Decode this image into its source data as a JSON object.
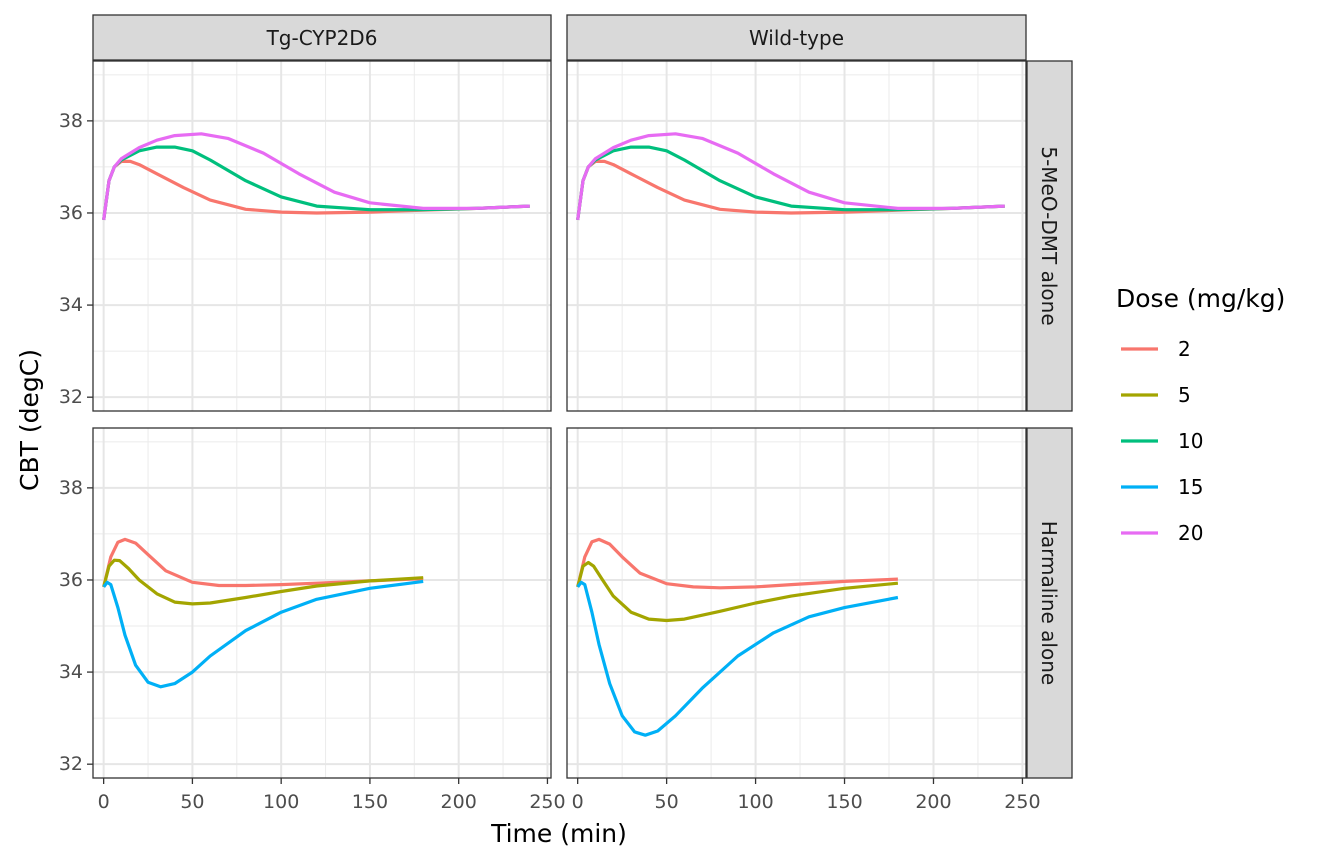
{
  "chart_data": {
    "type": "line",
    "xlabel": "Time (min)",
    "ylabel": "CBT (degC)",
    "xlim": [
      -6,
      252
    ],
    "ylim": [
      31.7,
      39.3
    ],
    "x_ticks": [
      0,
      50,
      100,
      150,
      200,
      250
    ],
    "y_ticks": [
      32,
      34,
      36,
      38
    ],
    "grid": true,
    "legend": {
      "title": "Dose (mg/kg)",
      "position": "right",
      "entries": [
        {
          "label": "2",
          "color": "#F8766D"
        },
        {
          "label": "5",
          "color": "#A3A500"
        },
        {
          "label": "10",
          "color": "#00BF7D"
        },
        {
          "label": "15",
          "color": "#00B0F6"
        },
        {
          "label": "20",
          "color": "#E76BF3"
        }
      ]
    },
    "col_facets": [
      "Tg-CYP2D6",
      "Wild-type"
    ],
    "row_facets": [
      "5-MeO-DMT alone",
      "Harmaline alone"
    ],
    "panels": [
      {
        "col": "Tg-CYP2D6",
        "row": "5-MeO-DMT alone",
        "series": [
          {
            "name": "2",
            "color": "#F8766D",
            "x": [
              0,
              3,
              6,
              10,
              15,
              20,
              30,
              45,
              60,
              80,
              100,
              120,
              150,
              180,
              210,
              240
            ],
            "y": [
              35.85,
              36.7,
              37.0,
              37.12,
              37.12,
              37.05,
              36.85,
              36.55,
              36.28,
              36.08,
              36.02,
              36.0,
              36.02,
              36.06,
              36.1,
              36.15
            ]
          },
          {
            "name": "10",
            "color": "#00BF7D",
            "x": [
              0,
              3,
              6,
              10,
              20,
              30,
              40,
              50,
              60,
              80,
              100,
              120,
              150,
              180,
              210,
              240
            ],
            "y": [
              35.85,
              36.7,
              37.0,
              37.15,
              37.35,
              37.43,
              37.43,
              37.35,
              37.15,
              36.7,
              36.35,
              36.15,
              36.07,
              36.07,
              36.1,
              36.15
            ]
          },
          {
            "name": "20",
            "color": "#E76BF3",
            "x": [
              0,
              3,
              6,
              10,
              20,
              30,
              40,
              55,
              70,
              90,
              110,
              130,
              150,
              180,
              210,
              240
            ],
            "y": [
              35.85,
              36.7,
              37.0,
              37.18,
              37.42,
              37.58,
              37.68,
              37.72,
              37.62,
              37.3,
              36.85,
              36.45,
              36.22,
              36.1,
              36.1,
              36.15
            ]
          }
        ]
      },
      {
        "col": "Wild-type",
        "row": "5-MeO-DMT alone",
        "series": [
          {
            "name": "2",
            "color": "#F8766D",
            "x": [
              0,
              3,
              6,
              10,
              15,
              20,
              30,
              45,
              60,
              80,
              100,
              120,
              150,
              180,
              210,
              240
            ],
            "y": [
              35.85,
              36.7,
              37.0,
              37.12,
              37.12,
              37.05,
              36.85,
              36.55,
              36.28,
              36.08,
              36.02,
              36.0,
              36.02,
              36.06,
              36.1,
              36.15
            ]
          },
          {
            "name": "10",
            "color": "#00BF7D",
            "x": [
              0,
              3,
              6,
              10,
              20,
              30,
              40,
              50,
              60,
              80,
              100,
              120,
              150,
              180,
              210,
              240
            ],
            "y": [
              35.85,
              36.7,
              37.0,
              37.15,
              37.35,
              37.43,
              37.43,
              37.35,
              37.15,
              36.7,
              36.35,
              36.15,
              36.07,
              36.07,
              36.1,
              36.15
            ]
          },
          {
            "name": "20",
            "color": "#E76BF3",
            "x": [
              0,
              3,
              6,
              10,
              20,
              30,
              40,
              55,
              70,
              90,
              110,
              130,
              150,
              180,
              210,
              240
            ],
            "y": [
              35.85,
              36.7,
              37.0,
              37.18,
              37.42,
              37.58,
              37.68,
              37.72,
              37.62,
              37.3,
              36.85,
              36.45,
              36.22,
              36.1,
              36.1,
              36.15
            ]
          }
        ]
      },
      {
        "col": "Tg-CYP2D6",
        "row": "Harmaline alone",
        "series": [
          {
            "name": "2",
            "color": "#F8766D",
            "x": [
              0,
              4,
              8,
              12,
              18,
              25,
              35,
              50,
              65,
              80,
              100,
              120,
              150,
              180
            ],
            "y": [
              35.85,
              36.5,
              36.82,
              36.88,
              36.8,
              36.55,
              36.2,
              35.95,
              35.88,
              35.88,
              35.9,
              35.93,
              35.98,
              36.03
            ]
          },
          {
            "name": "5",
            "color": "#A3A500",
            "x": [
              0,
              3,
              6,
              9,
              14,
              20,
              30,
              40,
              50,
              60,
              80,
              100,
              120,
              150,
              180
            ],
            "y": [
              35.85,
              36.3,
              36.43,
              36.42,
              36.25,
              36.0,
              35.7,
              35.52,
              35.48,
              35.5,
              35.62,
              35.75,
              35.87,
              35.98,
              36.05
            ]
          },
          {
            "name": "15",
            "color": "#00B0F6",
            "x": [
              0,
              2,
              4,
              8,
              12,
              18,
              25,
              32,
              40,
              50,
              60,
              80,
              100,
              120,
              150,
              180
            ],
            "y": [
              35.85,
              35.95,
              35.9,
              35.4,
              34.8,
              34.15,
              33.78,
              33.68,
              33.75,
              34.0,
              34.35,
              34.9,
              35.3,
              35.58,
              35.82,
              35.97
            ]
          }
        ]
      },
      {
        "col": "Wild-type",
        "row": "Harmaline alone",
        "series": [
          {
            "name": "2",
            "color": "#F8766D",
            "x": [
              0,
              4,
              8,
              12,
              18,
              25,
              35,
              50,
              65,
              80,
              100,
              120,
              150,
              180
            ],
            "y": [
              35.85,
              36.5,
              36.83,
              36.88,
              36.78,
              36.5,
              36.15,
              35.92,
              35.85,
              35.83,
              35.85,
              35.9,
              35.97,
              36.02
            ]
          },
          {
            "name": "5",
            "color": "#A3A500",
            "x": [
              0,
              3,
              6,
              9,
              14,
              20,
              30,
              40,
              50,
              60,
              80,
              100,
              120,
              150,
              180
            ],
            "y": [
              35.85,
              36.3,
              36.38,
              36.3,
              36.0,
              35.65,
              35.3,
              35.15,
              35.12,
              35.15,
              35.32,
              35.5,
              35.65,
              35.82,
              35.93
            ]
          },
          {
            "name": "15",
            "color": "#00B0F6",
            "x": [
              0,
              2,
              4,
              8,
              12,
              18,
              25,
              32,
              38,
              45,
              55,
              70,
              90,
              110,
              130,
              150,
              180
            ],
            "y": [
              35.85,
              35.95,
              35.9,
              35.3,
              34.6,
              33.75,
              33.05,
              32.7,
              32.63,
              32.72,
              33.05,
              33.65,
              34.35,
              34.85,
              35.2,
              35.4,
              35.62
            ]
          }
        ]
      }
    ]
  }
}
